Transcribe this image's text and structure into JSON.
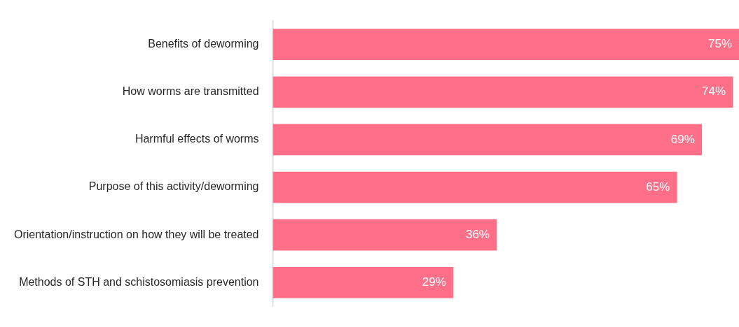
{
  "chart_data": {
    "type": "bar",
    "orientation": "horizontal",
    "categories": [
      "Benefits of deworming",
      "How worms are transmitted",
      "Harmful effects of worms",
      "Purpose of this activity/deworming",
      "Orientation/instruction on how they will be treated",
      "Methods of STH and schistosomiasis prevention"
    ],
    "values": [
      75,
      74,
      69,
      65,
      36,
      29
    ],
    "value_labels": [
      "75%",
      "74%",
      "69%",
      "65%",
      "36%",
      "29%"
    ],
    "color": "#ff6f87",
    "xlim": [
      0,
      75
    ],
    "tick_labels": "y"
  }
}
